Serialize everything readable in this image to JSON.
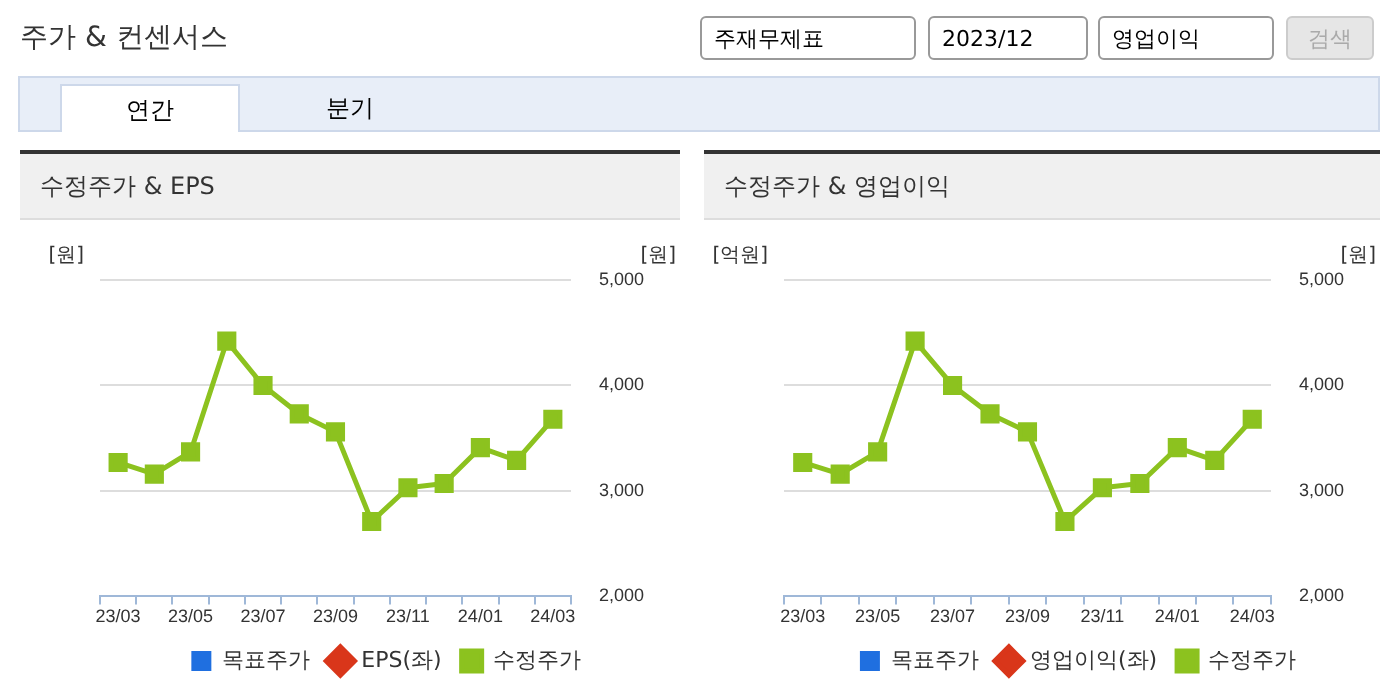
{
  "chart_data": [
    {
      "type": "line",
      "title": "수정주가 & EPS",
      "ylabel": "[원]",
      "y2label": "[원]",
      "annotations": [
        "주가 & 컨센서스",
        "주재무제표",
        "2023/12",
        "영업이익",
        "검색",
        "연간",
        "분기"
      ],
      "categories": [
        "23/03",
        null,
        "23/05",
        null,
        "23/07",
        null,
        "23/09",
        null,
        "23/11",
        null,
        "24/01",
        null,
        "24/03"
      ],
      "series": [
        {
          "name": "목표주가",
          "color": "#1f6fe0",
          "type": "bar",
          "axis": "y2",
          "values": [
            null,
            null,
            null,
            null,
            null,
            null,
            null,
            null,
            null,
            null,
            null,
            null,
            null
          ]
        },
        {
          "name": "EPS(좌)",
          "color": "#d9361a",
          "axis": "y",
          "marker": "diamond",
          "values": [
            null,
            null,
            null,
            null,
            null,
            null,
            null,
            null,
            null,
            null,
            null,
            null,
            null
          ]
        },
        {
          "name": "수정주가",
          "color": "#8cc21f",
          "axis": "y2",
          "marker": "square",
          "values": [
            3270,
            3160,
            3370,
            4420,
            4000,
            3730,
            3560,
            2710,
            3030,
            3070,
            3410,
            3290,
            3680
          ]
        }
      ],
      "y2lim": [
        2000,
        5000
      ],
      "y2ticks": [
        {
          "value": 2000,
          "label": "2,000"
        },
        {
          "value": 3000,
          "label": "3,000"
        },
        {
          "value": 4000,
          "label": "4,000"
        },
        {
          "value": 5000,
          "label": "5,000"
        }
      ],
      "grid": "y",
      "legend": "bottom",
      "tick_labels": "x"
    },
    {
      "type": "line",
      "title": "수정주가 & 영업이익",
      "ylabel": "[억원]",
      "y2label": "[원]",
      "categories": [
        "23/03",
        null,
        "23/05",
        null,
        "23/07",
        null,
        "23/09",
        null,
        "23/11",
        null,
        "24/01",
        null,
        "24/03"
      ],
      "series": [
        {
          "name": "목표주가",
          "color": "#1f6fe0",
          "type": "bar",
          "axis": "y2",
          "values": [
            null,
            null,
            null,
            null,
            null,
            null,
            null,
            null,
            null,
            null,
            null,
            null,
            null
          ]
        },
        {
          "name": "영업이익(좌)",
          "color": "#d9361a",
          "axis": "y",
          "marker": "diamond",
          "values": [
            null,
            null,
            null,
            null,
            null,
            null,
            null,
            null,
            null,
            null,
            null,
            null,
            null
          ]
        },
        {
          "name": "수정주가",
          "color": "#8cc21f",
          "axis": "y2",
          "marker": "square",
          "values": [
            3270,
            3160,
            3370,
            4420,
            4000,
            3730,
            3560,
            2710,
            3030,
            3070,
            3410,
            3290,
            3680
          ]
        }
      ],
      "y2lim": [
        2000,
        5000
      ],
      "y2ticks": [
        {
          "value": 2000,
          "label": "2,000"
        },
        {
          "value": 3000,
          "label": "3,000"
        },
        {
          "value": 4000,
          "label": "4,000"
        },
        {
          "value": 5000,
          "label": "5,000"
        }
      ],
      "grid": "y",
      "legend": "bottom",
      "tick_labels": "x"
    }
  ]
}
